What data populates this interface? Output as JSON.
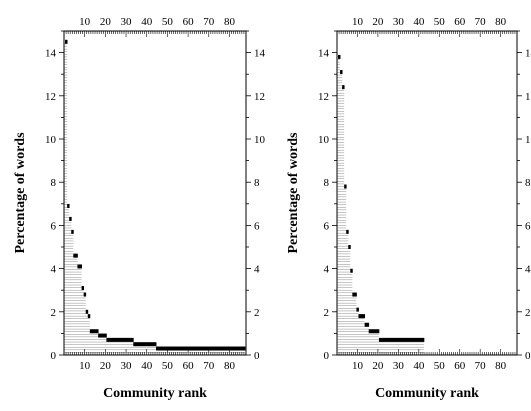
{
  "chart_data": [
    {
      "type": "bar",
      "xlabel": "Community rank",
      "ylabel": "Percentage of words",
      "xlim": [
        0,
        88
      ],
      "ylim": [
        0,
        15
      ],
      "x_ticks": [
        10,
        20,
        30,
        40,
        50,
        60,
        70,
        80
      ],
      "y_ticks": [
        0,
        2,
        4,
        6,
        8,
        10,
        12,
        14
      ],
      "grid": false,
      "x": [
        1,
        2,
        3,
        4,
        5,
        6,
        7,
        8,
        9,
        10,
        11,
        12,
        13,
        14,
        15,
        16,
        17,
        18,
        19,
        20,
        21,
        22,
        23,
        24,
        25,
        26,
        27,
        28,
        29,
        30,
        31,
        32,
        33,
        34,
        35,
        36,
        37,
        38,
        39,
        40,
        41,
        42,
        43,
        44,
        45,
        46,
        47,
        48,
        49,
        50,
        51,
        52,
        53,
        54,
        55,
        56,
        57,
        58,
        59,
        60,
        61,
        62,
        63,
        64,
        65,
        66,
        67,
        68,
        69,
        70,
        71,
        72,
        73,
        74,
        75,
        76,
        77,
        78,
        79,
        80,
        81,
        82,
        83,
        84,
        85,
        86,
        87
      ],
      "values": [
        14.5,
        6.9,
        6.3,
        5.7,
        4.6,
        4.6,
        4.1,
        4.1,
        3.1,
        2.8,
        2.0,
        1.8,
        1.1,
        1.1,
        1.1,
        1.1,
        0.9,
        0.9,
        0.9,
        0.9,
        0.7,
        0.7,
        0.7,
        0.7,
        0.7,
        0.7,
        0.7,
        0.7,
        0.7,
        0.7,
        0.7,
        0.7,
        0.7,
        0.5,
        0.5,
        0.5,
        0.5,
        0.5,
        0.5,
        0.5,
        0.5,
        0.5,
        0.5,
        0.5,
        0.3,
        0.3,
        0.3,
        0.3,
        0.3,
        0.3,
        0.3,
        0.3,
        0.3,
        0.3,
        0.3,
        0.3,
        0.3,
        0.3,
        0.3,
        0.3,
        0.3,
        0.3,
        0.3,
        0.3,
        0.3,
        0.3,
        0.3,
        0.3,
        0.3,
        0.3,
        0.3,
        0.3,
        0.3,
        0.3,
        0.3,
        0.3,
        0.3,
        0.3,
        0.3,
        0.3,
        0.3,
        0.3,
        0.3,
        0.3,
        0.3,
        0.3,
        0.3
      ]
    },
    {
      "type": "bar",
      "xlabel": "Community rank",
      "ylabel": "Percentage of words",
      "xlim": [
        0,
        88
      ],
      "ylim": [
        0,
        15
      ],
      "x_ticks": [
        10,
        20,
        30,
        40,
        50,
        60,
        70,
        80
      ],
      "y_ticks": [
        0,
        2,
        4,
        6,
        8,
        10,
        12,
        14
      ],
      "grid": false,
      "x": [
        1,
        2,
        3,
        4,
        5,
        6,
        7,
        8,
        9,
        10,
        11,
        12,
        13,
        14,
        15,
        16,
        17,
        18,
        19,
        20,
        21,
        22,
        23,
        24,
        25,
        26,
        27,
        28,
        29,
        30,
        31,
        32,
        33,
        34,
        35,
        36,
        37,
        38,
        39,
        40,
        41,
        42
      ],
      "values": [
        13.8,
        13.1,
        12.4,
        7.8,
        5.7,
        5.0,
        3.9,
        2.8,
        2.8,
        2.1,
        1.8,
        1.8,
        1.8,
        1.4,
        1.4,
        1.1,
        1.1,
        1.1,
        1.1,
        1.1,
        0.7,
        0.7,
        0.7,
        0.7,
        0.7,
        0.7,
        0.7,
        0.7,
        0.7,
        0.7,
        0.7,
        0.7,
        0.7,
        0.7,
        0.7,
        0.7,
        0.7,
        0.7,
        0.7,
        0.7,
        0.7,
        0.7
      ]
    }
  ]
}
